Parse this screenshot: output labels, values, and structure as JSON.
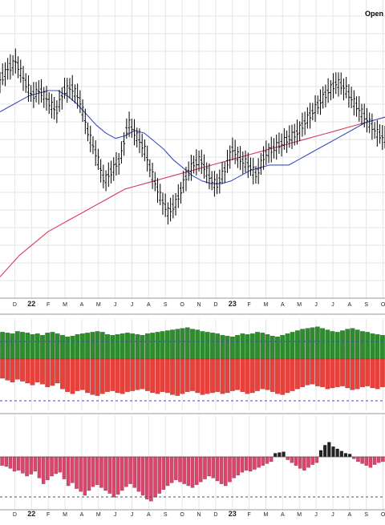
{
  "header": {
    "label": "Open"
  },
  "colors": {
    "grid": "#e6e6e6",
    "price_bar": "#000000",
    "ma_short": "#3b4cc0",
    "ma_long": "#d63a5a",
    "vol_up": "#2e8b2e",
    "vol_down": "#e8403a",
    "vol_ref": "#3b4cc0",
    "osc_pos": "#222222",
    "osc_neg": "#d9456b",
    "osc_ref": "#555555"
  },
  "chart_data": [
    {
      "type": "bar",
      "panel": "price",
      "description_series": [
        "OHLC price bars",
        "short moving average",
        "long moving average"
      ],
      "x": [
        "D",
        "22",
        "F",
        "M",
        "A",
        "M",
        "J",
        "J",
        "A",
        "S",
        "O",
        "N",
        "D",
        "23",
        "F",
        "M",
        "A",
        "M",
        "J",
        "J",
        "A",
        "S",
        "O"
      ],
      "x_major": [
        "22",
        "23"
      ],
      "ylim": [
        0,
        100
      ],
      "price_path": [
        76,
        80,
        83,
        76,
        70,
        72,
        68,
        64,
        72,
        73,
        68,
        56,
        48,
        38,
        42,
        46,
        60,
        55,
        50,
        40,
        32,
        26,
        30,
        38,
        44,
        46,
        40,
        36,
        42,
        50,
        46,
        44,
        40,
        48,
        50,
        52,
        54,
        56,
        60,
        64,
        68,
        72,
        75,
        73,
        68,
        64,
        60,
        56,
        54
      ],
      "ma_short_path": [
        64,
        66,
        68,
        70,
        71,
        72,
        72,
        70,
        67,
        63,
        59,
        56,
        54,
        55,
        57,
        56,
        53,
        50,
        46,
        43,
        40,
        38,
        37,
        37,
        38,
        40,
        42,
        43,
        44,
        44,
        44,
        46,
        48,
        50,
        52,
        54,
        56,
        58,
        60,
        61,
        62
      ],
      "ma_long_path": [
        2,
        6,
        10,
        13,
        16,
        19,
        21,
        23,
        25,
        27,
        29,
        31,
        33,
        35,
        36,
        37,
        38,
        39,
        40,
        41,
        42,
        43,
        44,
        45,
        46,
        47,
        48,
        49,
        50,
        51,
        52,
        53,
        54,
        55,
        56,
        57,
        58,
        59,
        60,
        61,
        62
      ]
    },
    {
      "type": "bar",
      "panel": "volume",
      "series": [
        {
          "values": [
            70,
            68,
            66,
            72,
            70,
            68,
            64,
            66,
            62,
            68,
            70,
            66,
            62,
            58,
            60,
            64,
            66,
            68,
            70,
            72,
            70,
            64,
            62,
            64,
            66,
            68,
            66,
            64,
            62,
            66,
            68,
            70,
            72,
            74,
            76,
            78,
            80,
            82,
            78,
            76,
            72,
            70,
            68,
            66,
            62,
            60,
            58,
            62,
            66,
            64,
            66,
            70,
            68,
            64,
            60,
            58,
            62,
            66,
            70,
            74,
            78,
            80,
            82,
            84,
            80,
            76,
            72,
            70,
            74,
            78,
            80,
            76,
            72,
            70,
            66,
            64,
            62
          ]
        },
        {
          "values": [
            -40,
            -44,
            -48,
            -42,
            -46,
            -50,
            -54,
            -48,
            -52,
            -58,
            -55,
            -50,
            -62,
            -68,
            -72,
            -66,
            -64,
            -70,
            -74,
            -76,
            -72,
            -68,
            -66,
            -70,
            -72,
            -68,
            -66,
            -64,
            -62,
            -66,
            -70,
            -72,
            -68,
            -70,
            -74,
            -76,
            -72,
            -68,
            -66,
            -70,
            -74,
            -72,
            -70,
            -68,
            -72,
            -70,
            -66,
            -64,
            -68,
            -72,
            -70,
            -66,
            -62,
            -64,
            -68,
            -72,
            -74,
            -70,
            -66,
            -62,
            -58,
            -54,
            -52,
            -56,
            -58,
            -62,
            -60,
            -58,
            -56,
            -60,
            -64,
            -62,
            -58,
            -56,
            -60,
            -62,
            -58
          ]
        }
      ],
      "ylim": [
        -100,
        100
      ]
    },
    {
      "type": "bar",
      "panel": "oscillator",
      "values": [
        -18,
        -20,
        -24,
        -30,
        -28,
        -34,
        -40,
        -36,
        -30,
        -44,
        -56,
        -48,
        -40,
        -35,
        -32,
        -46,
        -60,
        -54,
        -66,
        -72,
        -80,
        -70,
        -62,
        -58,
        -64,
        -70,
        -76,
        -84,
        -78,
        -70,
        -62,
        -56,
        -64,
        -72,
        -80,
        -88,
        -92,
        -84,
        -76,
        -68,
        -60,
        -54,
        -48,
        -52,
        -56,
        -60,
        -64,
        -58,
        -52,
        -46,
        -40,
        -44,
        -50,
        -56,
        -60,
        -52,
        -44,
        -38,
        -32,
        -28,
        -30,
        -26,
        -22,
        -18,
        -14,
        -10,
        10,
        12,
        14,
        -6,
        -12,
        -18,
        -24,
        -28,
        -22,
        -16,
        -12,
        18,
        32,
        40,
        28,
        22,
        16,
        10,
        8,
        -4,
        -10,
        -14,
        -18,
        -22,
        -16,
        -12,
        -10
      ],
      "ylim": [
        -100,
        100
      ]
    }
  ]
}
